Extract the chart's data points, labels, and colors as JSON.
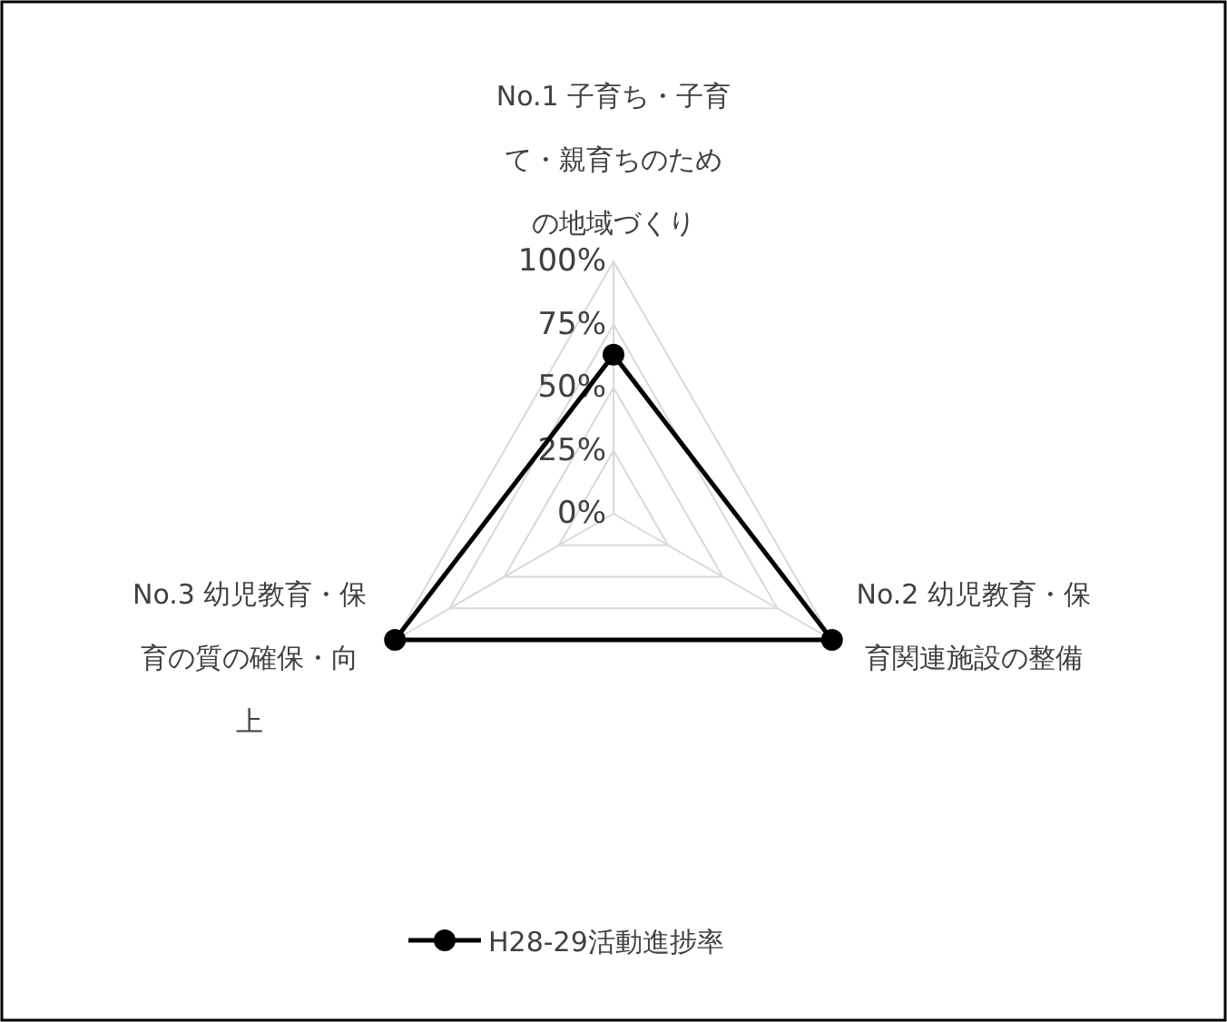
{
  "chart_data": {
    "type": "radar",
    "categories": [
      "No.1 子育ち・子育て・親育ちのための地域づくり",
      "No.2 幼児教育・保育関連施設の整備",
      "No.3 幼児教育・保育の質の確保・向上"
    ],
    "series": [
      {
        "name": "H28-29活動進捗率",
        "color": "#000000",
        "values": [
          63,
          100,
          100
        ]
      }
    ],
    "ylim": [
      0,
      100
    ],
    "yticks": [
      {
        "value": 0,
        "label": "0%"
      },
      {
        "value": 25,
        "label": "25%"
      },
      {
        "value": 50,
        "label": "50%"
      },
      {
        "value": 75,
        "label": "75%"
      },
      {
        "value": 100,
        "label": "100%"
      }
    ],
    "grid": true,
    "marker": "circle",
    "legend": "bottom"
  }
}
